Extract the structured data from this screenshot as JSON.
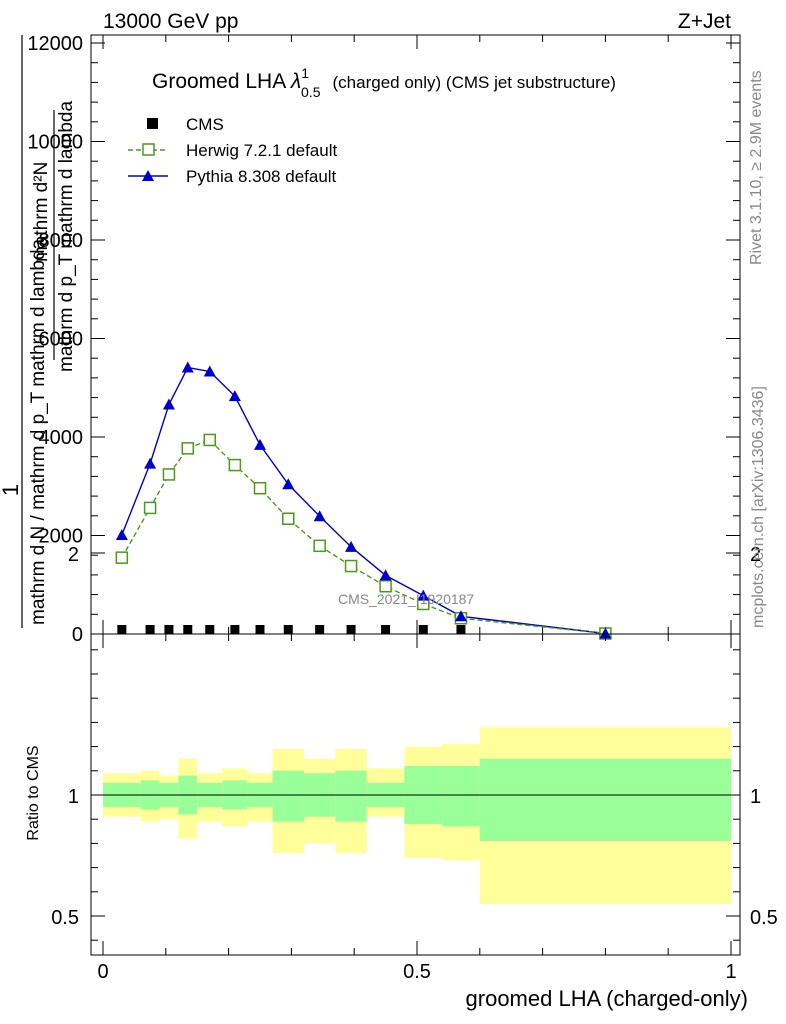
{
  "header": {
    "left": "13000 GeV pp",
    "right": "Z+Jet"
  },
  "title": {
    "main": "Groomed LHA ",
    "lambda": "λ",
    "sup": "1",
    "sub": "0.5",
    "suffix": "(charged only) (CMS jet substructure)"
  },
  "side_labels": {
    "rivet": "Rivet 3.1.10, ≥ 2.9M events",
    "mcplots": "mcplots.cern.ch [arXiv:1306.3436]"
  },
  "watermark": "CMS_2021_I1920187",
  "ylabel_main": {
    "frac_top": "1",
    "frac_bottom": "mathrm d N / mathrm d p_T mathrm d lambda",
    "deriv_top": "mathrm d²N",
    "deriv_bottom": "mathrm d p_T mathrm d lambda"
  },
  "colors": {
    "herwig": "#4a9a1a",
    "pythia": "#0000cc",
    "cms": "#000000",
    "band_inner": "#99ff99",
    "band_outer": "#ffff99"
  },
  "chart_data": [
    {
      "type": "line",
      "panel": "main",
      "xlabel": "groomed LHA (charged-only)",
      "ylabel": "",
      "xlim": [
        0,
        1
      ],
      "ylim": [
        0,
        12000
      ],
      "yticks": [
        0,
        2000,
        4000,
        6000,
        8000,
        10000,
        12000
      ],
      "ytick_labels": [
        "0",
        "2000",
        "4000",
        "6000",
        "8000",
        "10000",
        "12000"
      ],
      "legend_position": "top-left",
      "series": [
        {
          "name": "CMS",
          "marker": "filled-square",
          "x": [
            0.03,
            0.075,
            0.105,
            0.135,
            0.17,
            0.21,
            0.25,
            0.295,
            0.345,
            0.395,
            0.45,
            0.51,
            0.57
          ],
          "y": [
            5,
            5,
            5,
            5,
            5,
            5,
            5,
            5,
            5,
            5,
            5,
            5,
            5
          ]
        },
        {
          "name": "Herwig 7.2.1 default",
          "marker": "open-square",
          "line": "dashed",
          "x": [
            0.03,
            0.075,
            0.105,
            0.135,
            0.17,
            0.21,
            0.25,
            0.295,
            0.345,
            0.395,
            0.45,
            0.51,
            0.57,
            0.8
          ],
          "y": [
            1550,
            2560,
            3240,
            3770,
            3940,
            3430,
            2960,
            2340,
            1790,
            1380,
            970,
            610,
            320,
            10
          ]
        },
        {
          "name": "Pythia 8.308 default",
          "marker": "filled-triangle",
          "line": "solid",
          "x": [
            0.03,
            0.075,
            0.105,
            0.135,
            0.17,
            0.21,
            0.25,
            0.295,
            0.345,
            0.395,
            0.45,
            0.51,
            0.57,
            0.8
          ],
          "y": [
            2010,
            3460,
            4660,
            5410,
            5330,
            4830,
            3840,
            3040,
            2390,
            1770,
            1190,
            780,
            360,
            10
          ]
        }
      ]
    },
    {
      "type": "area",
      "panel": "ratio",
      "xlabel": "groomed LHA (charged-only)",
      "ylabel": "Ratio to CMS",
      "xlim": [
        0,
        1
      ],
      "ylim": [
        0.35,
        2.25
      ],
      "xticks": [
        0,
        0.5,
        1
      ],
      "xtick_labels": [
        "0",
        "0.5",
        "1"
      ],
      "yticks": [
        0.5,
        1,
        2
      ],
      "ytick_labels": [
        "0.5",
        "1",
        "2"
      ],
      "bins": [
        {
          "x0": 0.0,
          "x1": 0.06,
          "inner": [
            0.95,
            1.05
          ],
          "outer": [
            0.91,
            1.09
          ]
        },
        {
          "x0": 0.06,
          "x1": 0.09,
          "inner": [
            0.94,
            1.06
          ],
          "outer": [
            0.89,
            1.1
          ]
        },
        {
          "x0": 0.09,
          "x1": 0.12,
          "inner": [
            0.95,
            1.05
          ],
          "outer": [
            0.9,
            1.08
          ]
        },
        {
          "x0": 0.12,
          "x1": 0.15,
          "inner": [
            0.92,
            1.08
          ],
          "outer": [
            0.82,
            1.15
          ]
        },
        {
          "x0": 0.15,
          "x1": 0.19,
          "inner": [
            0.95,
            1.05
          ],
          "outer": [
            0.89,
            1.09
          ]
        },
        {
          "x0": 0.19,
          "x1": 0.23,
          "inner": [
            0.94,
            1.06
          ],
          "outer": [
            0.87,
            1.11
          ]
        },
        {
          "x0": 0.23,
          "x1": 0.27,
          "inner": [
            0.95,
            1.05
          ],
          "outer": [
            0.89,
            1.09
          ]
        },
        {
          "x0": 0.27,
          "x1": 0.32,
          "inner": [
            0.89,
            1.1
          ],
          "outer": [
            0.76,
            1.19
          ]
        },
        {
          "x0": 0.32,
          "x1": 0.37,
          "inner": [
            0.91,
            1.09
          ],
          "outer": [
            0.8,
            1.15
          ]
        },
        {
          "x0": 0.37,
          "x1": 0.42,
          "inner": [
            0.89,
            1.1
          ],
          "outer": [
            0.76,
            1.19
          ]
        },
        {
          "x0": 0.42,
          "x1": 0.48,
          "inner": [
            0.95,
            1.05
          ],
          "outer": [
            0.91,
            1.11
          ]
        },
        {
          "x0": 0.48,
          "x1": 0.54,
          "inner": [
            0.88,
            1.12
          ],
          "outer": [
            0.74,
            1.2
          ]
        },
        {
          "x0": 0.54,
          "x1": 0.6,
          "inner": [
            0.87,
            1.12
          ],
          "outer": [
            0.73,
            1.21
          ]
        },
        {
          "x0": 0.6,
          "x1": 1.0,
          "inner": [
            0.81,
            1.15
          ],
          "outer": [
            0.55,
            1.28
          ]
        }
      ]
    }
  ]
}
